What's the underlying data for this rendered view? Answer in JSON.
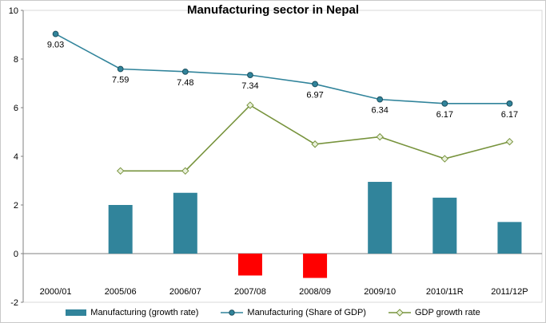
{
  "chart_data": {
    "type": "combo",
    "title": "Manufacturing sector in Nepal",
    "categories": [
      "2000/01",
      "2005/06",
      "2006/07",
      "2007/08",
      "2008/09",
      "2009/10",
      "2010/11R",
      "2011/12P"
    ],
    "series": [
      {
        "name": "Manufacturing (growth rate)",
        "type": "bar",
        "values": [
          null,
          2.0,
          2.5,
          -0.9,
          -1.0,
          2.95,
          2.3,
          1.3
        ],
        "color": "#31849B",
        "negative_color": "#FF0000"
      },
      {
        "name": "Manufacturing (Share of GDP)",
        "type": "line",
        "marker": "circle",
        "values": [
          9.03,
          7.59,
          7.48,
          7.34,
          6.97,
          6.34,
          6.17,
          6.17
        ],
        "data_labels": [
          "9.03",
          "7.59",
          "7.48",
          "7.34",
          "6.97",
          "6.34",
          "6.17",
          "6.17"
        ],
        "color": "#31849B"
      },
      {
        "name": "GDP growth rate",
        "type": "line",
        "marker": "diamond",
        "values": [
          null,
          3.4,
          3.4,
          6.1,
          4.5,
          4.8,
          3.9,
          4.6
        ],
        "color": "#77933C",
        "marker_fill": "#EAF1DD"
      }
    ],
    "ylim": [
      -2,
      10
    ],
    "yticks": [
      -2,
      0,
      2,
      4,
      6,
      8,
      10
    ],
    "grid": false,
    "legend_position": "bottom"
  }
}
